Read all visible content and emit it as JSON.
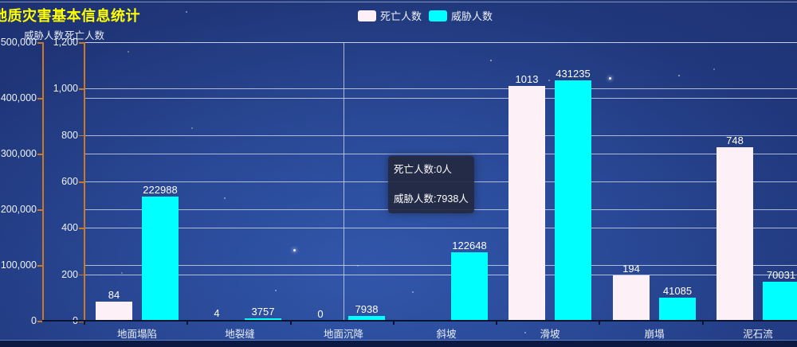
{
  "chart_data": {
    "type": "bar",
    "title": "地质灾害基本信息统计",
    "categories": [
      "地面塌陷",
      "地裂缝",
      "地面沉降",
      "斜坡",
      "滑坡",
      "崩塌",
      "泥石流"
    ],
    "series": [
      {
        "name": "死亡人数",
        "color": "#fdf1f7",
        "y_axis": 1,
        "values": [
          84,
          4,
          0,
          null,
          1013,
          194,
          748
        ],
        "value_labels": [
          "84",
          "4",
          "0",
          "",
          "1013",
          "194",
          "748"
        ]
      },
      {
        "name": "威胁人数",
        "color": "#00ffff",
        "y_axis": 0,
        "values": [
          222988,
          3757,
          7938,
          122648,
          431235,
          41085,
          70031
        ],
        "value_labels": [
          "222988",
          "3757",
          "7938",
          "122648",
          "431235",
          "41085",
          "70031"
        ]
      }
    ],
    "y_axes": [
      {
        "name": "威胁人数",
        "min": 0,
        "max": 500000,
        "tick_labels": [
          "0",
          "100,000",
          "200,000",
          "300,000",
          "400,000",
          "500,000"
        ]
      },
      {
        "name": "死亡人数",
        "min": 0,
        "max": 1200,
        "tick_labels": [
          "0",
          "200",
          "400",
          "600",
          "800",
          "1,000",
          "1,200"
        ]
      }
    ],
    "legend": {
      "position": "top-center",
      "items": [
        "死亡人数",
        "威胁人数"
      ]
    },
    "grid": true,
    "tooltip": {
      "lines": [
        "死亡人数:0人",
        "威胁人数:7938人"
      ]
    },
    "pointer_category_index": 2
  },
  "colors": {
    "title": "#ffff00",
    "axis_line": "#c97a28",
    "death_bar": "#fdf1f7",
    "threat_bar": "#00ffff",
    "grid_line": "#cdd6e6",
    "tooltip_bg": "rgba(34,41,65,0.93)",
    "background_base": "#1b2e6e"
  }
}
